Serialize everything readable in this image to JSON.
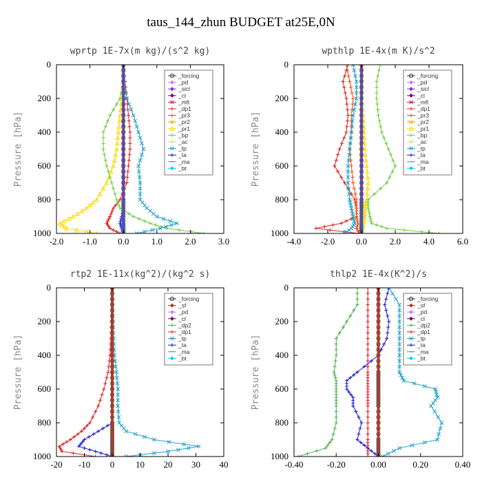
{
  "figure_title": "taus_144_zhun  BUDGET at25E,0N",
  "colors": {
    "_forcing": "#333333",
    "_sf": "#e41a1c",
    "_pd": "#c77dff",
    "_sicl": "#8a2be2",
    "_cl": "#800080",
    "_mfl": "#c2185b",
    "_dp1": "#e31a1c",
    "_dp2": "#4caf50",
    "_pr1": "#ffd700",
    "_pr2": "#ffa500",
    "_pr3": "#ff4500",
    "_bp": "#6acc3a",
    "_ac": "#b6e35a",
    "_tp": "#1f9fc9",
    "_ta": "#1a1ad6",
    "_ma": "#4a90c9",
    "_bt": "#00d4ff"
  },
  "chart_data": [
    {
      "type": "line",
      "title": "wprtp  1E-7x(m kg)/(s^2 kg)",
      "ylabel": "Pressure [hPa]",
      "xlim": [
        -2.0,
        3.0
      ],
      "ylim": [
        1000,
        0
      ],
      "xticks": [
        "-2.0",
        "-1.0",
        "0.0",
        "1.0",
        "2.0",
        "3.0"
      ],
      "yticks": [
        "0",
        "200",
        "400",
        "600",
        "800",
        "1000"
      ],
      "legend_position": "upper-right",
      "y": [
        0,
        100,
        200,
        300,
        400,
        500,
        600,
        700,
        800,
        850,
        900,
        940,
        970,
        1000
      ],
      "series": [
        {
          "name": "_forcing",
          "marker": "circle",
          "x": [
            0,
            0,
            0,
            0,
            0,
            0,
            0,
            0,
            0,
            0,
            0,
            0,
            0,
            0
          ]
        },
        {
          "name": "_pd",
          "marker": "diamond",
          "x": [
            0,
            0,
            0,
            0,
            0,
            0,
            0,
            0,
            0,
            0,
            0,
            0,
            0,
            0
          ]
        },
        {
          "name": "_sicl",
          "marker": "diamond",
          "x": [
            0,
            0,
            0,
            0,
            0,
            0,
            0,
            0,
            0,
            0,
            0,
            0,
            0,
            0
          ]
        },
        {
          "name": "_cl",
          "marker": "diamond",
          "x": [
            0,
            0,
            0,
            0,
            0,
            0,
            0,
            0,
            0,
            0,
            0,
            0,
            0,
            0
          ]
        },
        {
          "name": "_mfl",
          "marker": "x",
          "x": [
            0,
            0,
            0,
            0,
            0,
            0,
            0,
            0,
            0,
            0,
            0,
            0,
            0,
            0
          ]
        },
        {
          "name": "_dp1",
          "marker": "cross",
          "x": [
            0,
            0.05,
            0.1,
            0.15,
            0.2,
            0.2,
            0.15,
            0.1,
            -0.1,
            -0.3,
            -0.4,
            -0.5,
            -0.4,
            -0.1
          ]
        },
        {
          "name": "_pr3",
          "marker": "cross",
          "x": [
            0,
            0,
            0,
            0,
            0,
            0,
            0,
            0,
            0,
            0,
            0,
            0,
            0,
            0
          ]
        },
        {
          "name": "_pr2",
          "marker": "star",
          "x": [
            0,
            0,
            0,
            0,
            0,
            0,
            0,
            0,
            0,
            0,
            0,
            0,
            0,
            0
          ]
        },
        {
          "name": "_pr1",
          "marker": "triangle",
          "x": [
            0,
            0,
            -0.05,
            -0.1,
            -0.15,
            -0.2,
            -0.3,
            -0.5,
            -0.8,
            -1.1,
            -1.5,
            -1.9,
            -1.7,
            -0.8
          ]
        },
        {
          "name": "_bp",
          "marker": "cross",
          "x": [
            0,
            0,
            -0.1,
            -0.4,
            -0.6,
            -0.6,
            -0.5,
            -0.35,
            -0.2,
            -0.1,
            0.3,
            0.8,
            1.3,
            2.4
          ]
        },
        {
          "name": "_ac",
          "marker": "cross",
          "x": [
            0,
            0,
            0,
            0,
            0,
            0,
            0,
            0,
            0,
            0,
            0,
            0,
            0,
            0
          ]
        },
        {
          "name": "_tp",
          "marker": "x",
          "x": [
            0,
            0,
            0.1,
            0.3,
            0.45,
            0.6,
            0.45,
            0.5,
            0.5,
            0.7,
            1.0,
            1.6,
            1.1,
            0.4
          ]
        },
        {
          "name": "_ta",
          "marker": "plus",
          "x": [
            0,
            0,
            0,
            0,
            0,
            0,
            0,
            0,
            0,
            0,
            -0.05,
            -0.1,
            -0.05,
            0
          ]
        },
        {
          "name": "_ma",
          "marker": "dash",
          "x": [
            0,
            0,
            0,
            0,
            0,
            0,
            0,
            0,
            0,
            0,
            0,
            0,
            0,
            0
          ]
        },
        {
          "name": "_bt",
          "marker": "diamond",
          "x": [
            0,
            0,
            0,
            0,
            0,
            0,
            0,
            0,
            0,
            0,
            0,
            0,
            0,
            0
          ]
        }
      ]
    },
    {
      "type": "line",
      "title": "wpthlp  1E-4x(m K)/s^2",
      "ylabel": "Pressure [hPa]",
      "xlim": [
        -4.0,
        6.0
      ],
      "ylim": [
        1000,
        0
      ],
      "xticks": [
        "-4.0",
        "-2.0",
        "0.0",
        "2.0",
        "4.0",
        "6.0"
      ],
      "yticks": [
        "0",
        "200",
        "400",
        "600",
        "800",
        "1000"
      ],
      "legend_position": "upper-right",
      "y": [
        0,
        100,
        200,
        300,
        400,
        500,
        600,
        700,
        800,
        850,
        900,
        940,
        970,
        1000
      ],
      "series": [
        {
          "name": "_forcing",
          "marker": "circle",
          "x": [
            0,
            0,
            0,
            0,
            0,
            0,
            0,
            0,
            0,
            0,
            0,
            0,
            0,
            0
          ]
        },
        {
          "name": "_pd",
          "marker": "diamond",
          "x": [
            0,
            0,
            0,
            0,
            0,
            0,
            0,
            0,
            0,
            0,
            0,
            0,
            0,
            0
          ]
        },
        {
          "name": "_sicl",
          "marker": "diamond",
          "x": [
            0,
            0,
            0,
            0,
            0,
            0,
            0,
            0,
            0,
            0,
            0,
            0,
            0,
            0
          ]
        },
        {
          "name": "_cl",
          "marker": "diamond",
          "x": [
            0,
            0,
            0,
            0,
            0,
            0,
            0,
            0,
            0,
            0,
            0,
            0,
            0,
            0
          ]
        },
        {
          "name": "_mfl",
          "marker": "x",
          "x": [
            0,
            0,
            0,
            0,
            0,
            0,
            0,
            0,
            0,
            0,
            0,
            0,
            0,
            0
          ]
        },
        {
          "name": "_dp1",
          "marker": "cross",
          "x": [
            -0.8,
            -1.1,
            -0.9,
            -0.8,
            -0.9,
            -1.3,
            -1.6,
            -1.0,
            -0.4,
            -0.3,
            -0.3,
            -1.2,
            -2.7,
            -0.2
          ]
        },
        {
          "name": "_pr3",
          "marker": "cross",
          "x": [
            -0.9,
            -0.7,
            -0.5,
            -0.6,
            -0.6,
            -0.7,
            -0.6,
            -0.5,
            -0.3,
            -0.3,
            -0.3,
            -0.2,
            -0.3,
            -0.1
          ]
        },
        {
          "name": "_pr2",
          "marker": "star",
          "x": [
            0,
            0,
            0,
            0,
            0,
            0,
            0,
            0,
            0,
            0,
            0,
            0,
            0,
            0
          ]
        },
        {
          "name": "_pr1",
          "marker": "triangle",
          "x": [
            0,
            0,
            0,
            0.1,
            0.15,
            0.2,
            0.3,
            0.4,
            0.3,
            0.2,
            0.2,
            0.1,
            0.05,
            0
          ]
        },
        {
          "name": "_bp",
          "marker": "cross",
          "x": [
            1.1,
            0.9,
            0.9,
            1.0,
            1.2,
            1.6,
            2.0,
            1.5,
            0.4,
            0.4,
            0.5,
            0.6,
            1.5,
            4.6
          ]
        },
        {
          "name": "_ac",
          "marker": "cross",
          "x": [
            0,
            0,
            0,
            0,
            0,
            0,
            0,
            0,
            0,
            0,
            0,
            0,
            0,
            0
          ]
        },
        {
          "name": "_tp",
          "marker": "x",
          "x": [
            -0.5,
            -0.3,
            -0.3,
            -0.5,
            -0.6,
            -0.7,
            -0.8,
            -0.8,
            -0.7,
            -0.6,
            -0.5,
            -0.4,
            -0.6,
            -1.0
          ]
        },
        {
          "name": "_ta",
          "marker": "plus",
          "x": [
            0,
            0,
            0,
            0,
            0,
            0,
            0,
            0,
            0,
            0,
            0,
            0,
            -0.05,
            0
          ]
        },
        {
          "name": "_ma",
          "marker": "dash",
          "x": [
            0,
            0,
            0,
            0,
            0,
            0,
            0,
            0,
            0,
            0,
            0,
            0,
            0,
            0
          ]
        },
        {
          "name": "_bt",
          "marker": "diamond",
          "x": [
            0,
            0,
            0,
            0,
            0,
            0,
            0,
            0,
            0,
            0,
            0,
            0,
            0,
            0
          ]
        }
      ]
    },
    {
      "type": "line",
      "title": "rtp2  1E-11x(kg^2)/(kg^2 s)",
      "ylabel": "Pressure [hPa]",
      "xlim": [
        -20,
        40
      ],
      "ylim": [
        1000,
        0
      ],
      "xticks": [
        "-20",
        "-10",
        "0",
        "10",
        "20",
        "30",
        "40"
      ],
      "yticks": [
        "0",
        "200",
        "400",
        "600",
        "800",
        "1000"
      ],
      "legend_position": "upper-right",
      "y": [
        0,
        100,
        200,
        300,
        400,
        500,
        600,
        700,
        800,
        850,
        900,
        940,
        970,
        1000
      ],
      "series": [
        {
          "name": "_forcing",
          "marker": "circle",
          "x": [
            0,
            0,
            0,
            0,
            0,
            0,
            0,
            0,
            0,
            0,
            0,
            0,
            0,
            0
          ]
        },
        {
          "name": "_sf",
          "marker": "diamond",
          "x": [
            0,
            0,
            0,
            0,
            0,
            0,
            0,
            0,
            0,
            0,
            0,
            0,
            0,
            0
          ]
        },
        {
          "name": "_pd",
          "marker": "diamond",
          "x": [
            0,
            0,
            0,
            0,
            0,
            0,
            0,
            0,
            0,
            0,
            0,
            0,
            0,
            0
          ]
        },
        {
          "name": "_cl",
          "marker": "diamond",
          "x": [
            0,
            0,
            0,
            0,
            0,
            0,
            0,
            0,
            0,
            0,
            0,
            0,
            0,
            0
          ]
        },
        {
          "name": "_dp2",
          "marker": "cross",
          "x": [
            0,
            0,
            0,
            0,
            0,
            0,
            0,
            0,
            0,
            0,
            0,
            0,
            0,
            0
          ]
        },
        {
          "name": "_dp1",
          "marker": "cross",
          "x": [
            0,
            0,
            -0.3,
            -0.5,
            -0.8,
            -1.5,
            -3,
            -5,
            -8,
            -11,
            -15,
            -19,
            -18,
            -6
          ]
        },
        {
          "name": "_tp",
          "marker": "x",
          "x": [
            0,
            0,
            0.3,
            0.5,
            0.8,
            1.5,
            2,
            2,
            2.5,
            5,
            15,
            31,
            20,
            5
          ]
        },
        {
          "name": "_ta",
          "marker": "plus",
          "x": [
            0,
            0,
            0,
            0,
            0,
            0,
            0,
            0,
            0,
            -5,
            -10,
            -12,
            -6,
            0
          ]
        },
        {
          "name": "_ma",
          "marker": "dash",
          "x": [
            0,
            0,
            0,
            0,
            0,
            0,
            0,
            0,
            0,
            0,
            0,
            0,
            0,
            0
          ]
        },
        {
          "name": "_bt",
          "marker": "diamond",
          "x": [
            0,
            0,
            0,
            0,
            0,
            0,
            0,
            0,
            0,
            0,
            0,
            0,
            0,
            0
          ]
        }
      ]
    },
    {
      "type": "line",
      "title": "thlp2  1E-4x(K^2)/s",
      "ylabel": "Pressure [hPa]",
      "xlim": [
        -0.4,
        0.4
      ],
      "ylim": [
        1000,
        0
      ],
      "xticks": [
        "-0.40",
        "-0.20",
        "0.00",
        "0.20",
        "0.40"
      ],
      "yticks": [
        "0",
        "200",
        "400",
        "600",
        "800",
        "1000"
      ],
      "legend_position": "upper-right",
      "y": [
        0,
        100,
        200,
        300,
        400,
        500,
        550,
        600,
        650,
        700,
        800,
        900,
        950,
        1000
      ],
      "series": [
        {
          "name": "_forcing",
          "marker": "circle",
          "x": [
            0,
            0,
            0,
            0,
            0,
            0,
            0,
            0,
            0,
            0,
            0,
            0,
            0,
            0
          ]
        },
        {
          "name": "_sf",
          "marker": "diamond",
          "x": [
            0,
            0,
            0,
            0,
            0,
            0,
            0,
            0,
            0,
            0,
            0,
            0,
            0,
            0
          ]
        },
        {
          "name": "_pd",
          "marker": "diamond",
          "x": [
            0,
            0,
            0,
            0,
            0,
            0,
            0,
            0,
            0,
            0,
            0,
            0,
            0,
            0
          ]
        },
        {
          "name": "_cl",
          "marker": "diamond",
          "x": [
            0,
            0,
            0,
            0,
            0,
            0,
            0,
            0,
            0,
            0,
            0,
            0,
            0,
            0
          ]
        },
        {
          "name": "_dp2",
          "marker": "cross",
          "x": [
            -0.1,
            -0.1,
            -0.15,
            -0.2,
            -0.2,
            -0.21,
            -0.2,
            -0.2,
            -0.2,
            -0.2,
            -0.2,
            -0.22,
            -0.25,
            -0.38
          ]
        },
        {
          "name": "_dp1",
          "marker": "cross",
          "x": [
            -0.05,
            -0.05,
            -0.05,
            -0.05,
            -0.05,
            -0.05,
            -0.05,
            -0.05,
            -0.05,
            -0.05,
            -0.05,
            -0.05,
            -0.05,
            -0.05
          ]
        },
        {
          "name": "_tp",
          "marker": "x",
          "x": [
            0.05,
            0.1,
            0.1,
            0.1,
            0.1,
            0.1,
            0.12,
            0.27,
            0.28,
            0.25,
            0.3,
            0.28,
            0.1,
            0.02
          ]
        },
        {
          "name": "_ta",
          "marker": "plus",
          "x": [
            0.05,
            0.03,
            0.05,
            0.04,
            0,
            -0.1,
            -0.15,
            -0.15,
            -0.12,
            -0.12,
            -0.08,
            -0.1,
            -0.05,
            0
          ]
        },
        {
          "name": "_ma",
          "marker": "dash",
          "x": [
            0,
            0,
            0,
            0,
            0,
            0,
            0,
            0,
            0,
            0,
            0,
            0,
            0,
            0
          ]
        },
        {
          "name": "_bt",
          "marker": "diamond",
          "x": [
            0,
            0,
            0,
            0,
            0,
            0,
            0,
            0,
            0,
            0,
            0,
            0,
            0,
            0
          ]
        }
      ]
    }
  ]
}
